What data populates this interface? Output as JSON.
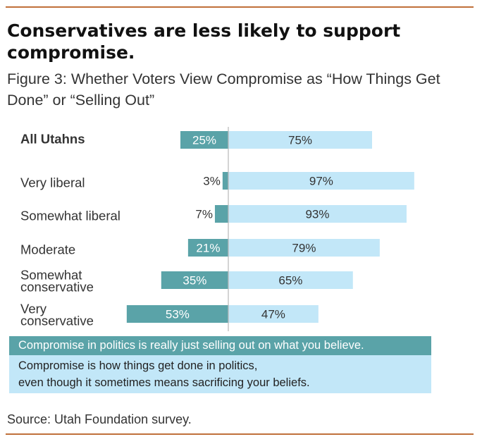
{
  "headline": "Conservatives are less likely to support compromise.",
  "subtitle": "Figure 3: Whether Voters View Compromise as “How Things Get Done” or “Selling Out”",
  "source": "Source: Utah Foundation survey.",
  "colors": {
    "selling_out": "#5aa3a8",
    "get_done": "#c2e7f8",
    "rule": "#c0703a",
    "text": "#333333"
  },
  "legend": {
    "selling_out": "Compromise in politics is really just selling out on what you believe.",
    "get_done_line1": "Compromise is how things get done in politics,",
    "get_done_line2": "even though it sometimes means sacrificing your beliefs."
  },
  "chart_data": {
    "type": "bar",
    "orientation": "horizontal diverging",
    "categories": [
      [
        "All Utahns"
      ],
      [
        "Very liberal"
      ],
      [
        "Somewhat liberal"
      ],
      [
        "Moderate"
      ],
      [
        "Somewhat",
        "conservative"
      ],
      [
        "Very",
        "conservative"
      ]
    ],
    "series": [
      {
        "name": "Compromise in politics is really just selling out on what you believe.",
        "values": [
          25,
          3,
          7,
          21,
          35,
          53
        ],
        "labels": [
          "25%",
          "3%",
          "7%",
          "21%",
          "35%",
          "53%"
        ]
      },
      {
        "name": "Compromise is how things get done in politics, even though it sometimes means sacrificing your beliefs.",
        "values": [
          75,
          97,
          93,
          79,
          65,
          47
        ],
        "labels": [
          "75%",
          "97%",
          "93%",
          "79%",
          "65%",
          "47%"
        ]
      }
    ],
    "xlim": [
      -100,
      100
    ],
    "grid": false,
    "legend_position": "bottom"
  }
}
